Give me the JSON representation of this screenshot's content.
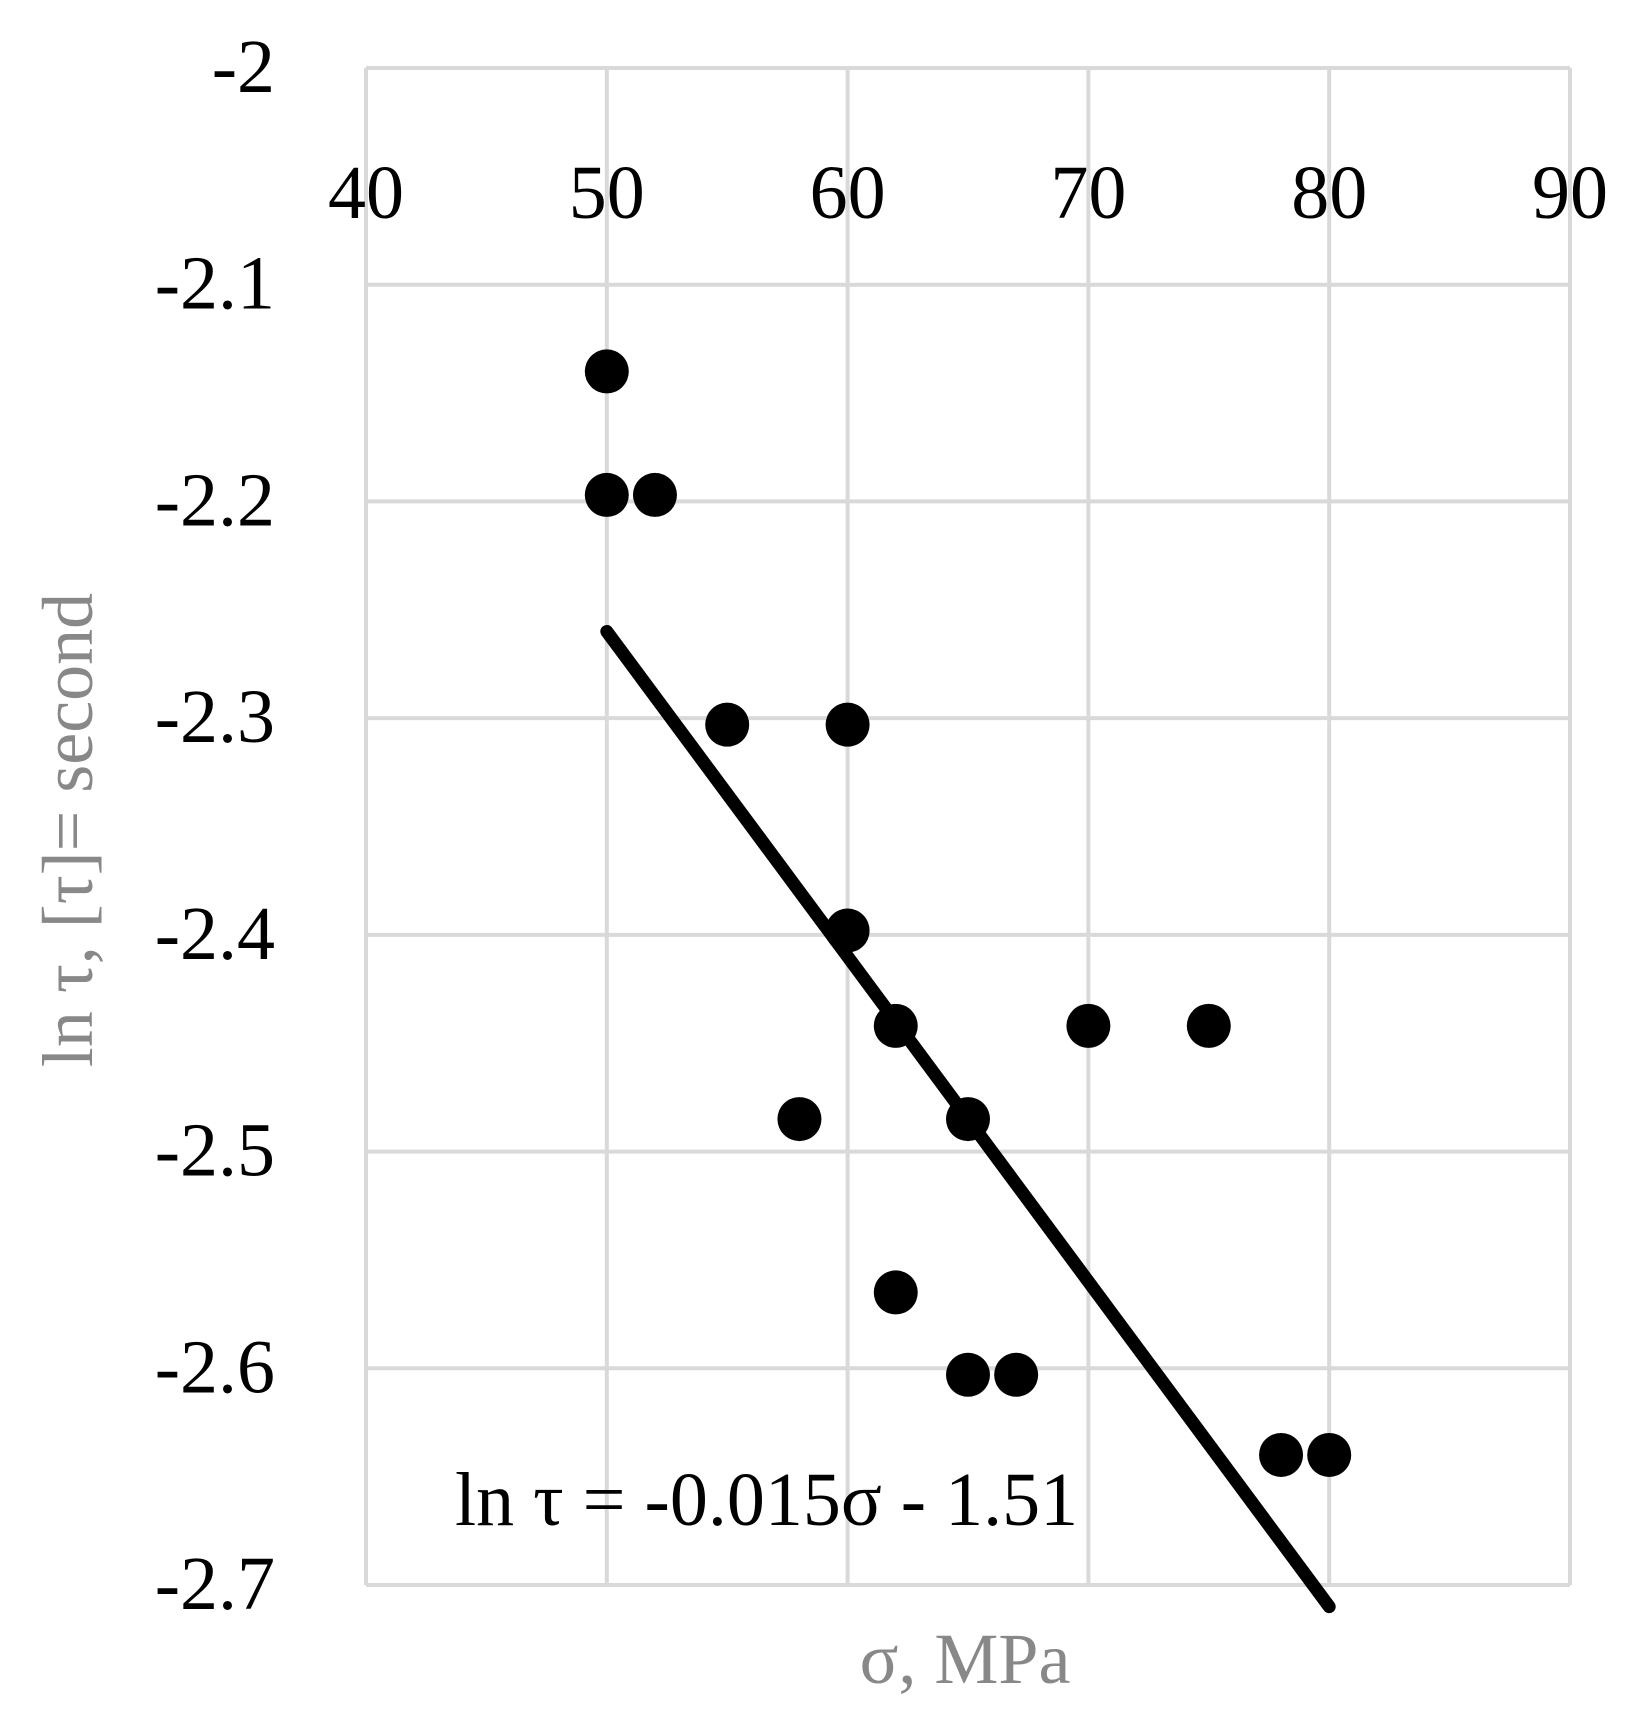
{
  "chart_data": {
    "type": "scatter",
    "title": "",
    "xlabel": "σ, MPa",
    "ylabel": "ln τ, [τ]= second",
    "xlim": [
      40,
      90
    ],
    "ylim": [
      -2.7,
      -2.0
    ],
    "x_ticks": [
      "40",
      "50",
      "60",
      "70",
      "80",
      "90"
    ],
    "y_ticks": [
      "-2",
      "-2.1",
      "-2.2",
      "-2.3",
      "-2.4",
      "-2.5",
      "-2.6",
      "-2.7"
    ],
    "x_axis_position": "top",
    "grid": true,
    "legend": "none",
    "points": [
      {
        "x": 50,
        "y": -2.14
      },
      {
        "x": 50,
        "y": -2.197
      },
      {
        "x": 52,
        "y": -2.197
      },
      {
        "x": 55,
        "y": -2.303
      },
      {
        "x": 60,
        "y": -2.303
      },
      {
        "x": 60,
        "y": -2.398
      },
      {
        "x": 62,
        "y": -2.442
      },
      {
        "x": 70,
        "y": -2.442
      },
      {
        "x": 75,
        "y": -2.442
      },
      {
        "x": 58,
        "y": -2.485
      },
      {
        "x": 65,
        "y": -2.485
      },
      {
        "x": 62,
        "y": -2.565
      },
      {
        "x": 65,
        "y": -2.603
      },
      {
        "x": 67,
        "y": -2.603
      },
      {
        "x": 78,
        "y": -2.64
      },
      {
        "x": 80,
        "y": -2.64
      }
    ],
    "trendline": {
      "slope": -0.015,
      "intercept": -1.51,
      "x_range": [
        50,
        80
      ],
      "equation": "ln τ = -0.015σ - 1.51"
    },
    "colors": {
      "points": "#000000",
      "trendline": "#000000",
      "grid": "#d9d9d9",
      "axis_title": "#888888",
      "tick_label": "#000000"
    }
  }
}
